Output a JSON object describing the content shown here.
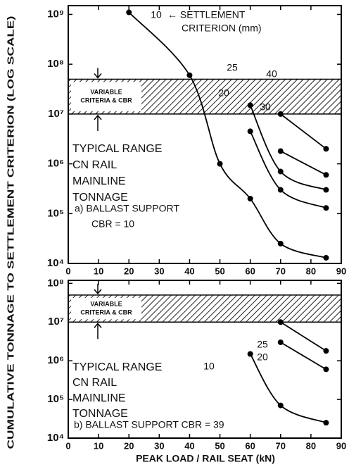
{
  "chart_data": [
    {
      "type": "line",
      "log_y": true,
      "xlim": [
        0,
        90
      ],
      "xticks": [
        0,
        10,
        20,
        30,
        40,
        50,
        60,
        70,
        80,
        90
      ],
      "ylim": [
        10000,
        1500000000
      ],
      "yticks": [
        {
          "value": 10000,
          "label": "10⁴"
        },
        {
          "value": 100000,
          "label": "10⁵"
        },
        {
          "value": 1000000,
          "label": "10⁶"
        },
        {
          "value": 10000000,
          "label": "10⁷"
        },
        {
          "value": 100000000,
          "label": "10⁸"
        },
        {
          "value": 1000000000,
          "label": "10⁹"
        }
      ],
      "band": [
        10000000,
        50000000
      ],
      "band_label": [
        "VARIABLE",
        "CRITERIA & CBR"
      ],
      "range_label": [
        "TYPICAL RANGE",
        "CN RAIL",
        "MAINLINE",
        "TONNAGE"
      ],
      "panel_label": [
        "a) BALLAST SUPPORT",
        "CBR = 10"
      ],
      "criterion_label": [
        "← SETTLEMENT",
        "CRITERION (mm)"
      ],
      "series": [
        {
          "name": "10",
          "color": "#000000",
          "x": [
            20,
            40,
            50,
            60,
            70,
            85
          ],
          "values": [
            1100000000,
            60000000,
            1000000,
            200000,
            25000,
            13000
          ]
        },
        {
          "name": "20",
          "color": "#000000",
          "x": [
            60,
            70,
            85
          ],
          "values": [
            4500000,
            300000,
            130000
          ]
        },
        {
          "name": "25",
          "color": "#000000",
          "x": [
            60,
            70,
            85
          ],
          "values": [
            15000000,
            700000,
            300000
          ]
        },
        {
          "name": "30",
          "color": "#000000",
          "x": [
            70,
            85
          ],
          "values": [
            1800000,
            600000
          ]
        },
        {
          "name": "40",
          "color": "#000000",
          "x": [
            70,
            85
          ],
          "values": [
            10000000,
            2000000
          ]
        }
      ]
    },
    {
      "type": "line",
      "log_y": true,
      "xlim": [
        0,
        90
      ],
      "xticks": [
        0,
        10,
        20,
        30,
        40,
        50,
        60,
        70,
        80,
        90
      ],
      "ylim": [
        10000,
        120000000
      ],
      "yticks": [
        {
          "value": 10000,
          "label": "10⁴"
        },
        {
          "value": 100000,
          "label": "10⁵"
        },
        {
          "value": 1000000,
          "label": "10⁶"
        },
        {
          "value": 10000000,
          "label": "10⁷"
        },
        {
          "value": 100000000,
          "label": "10⁸"
        }
      ],
      "band": [
        10000000,
        50000000
      ],
      "band_label": [
        "VARIABLE",
        "CRITERIA & CBR"
      ],
      "range_label": [
        "TYPICAL RANGE",
        "CN RAIL",
        "MAINLINE",
        "TONNAGE"
      ],
      "panel_label": [
        "b) BALLAST SUPPORT CBR = 39"
      ],
      "series": [
        {
          "name": "10",
          "color": "#000000",
          "x": [
            60,
            70,
            85
          ],
          "values": [
            1500000,
            70000,
            25000
          ]
        },
        {
          "name": "20",
          "color": "#000000",
          "x": [
            70,
            85
          ],
          "values": [
            3000000,
            600000
          ]
        },
        {
          "name": "25",
          "color": "#000000",
          "x": [
            70,
            85
          ],
          "values": [
            10000000,
            1800000
          ]
        }
      ]
    }
  ],
  "ylabel": "CUMULATIVE TONNAGE TO SETTLEMENT CRITERION (LOG SCALE)",
  "xlabel": "PEAK LOAD / RAIL SEAT (kN)"
}
